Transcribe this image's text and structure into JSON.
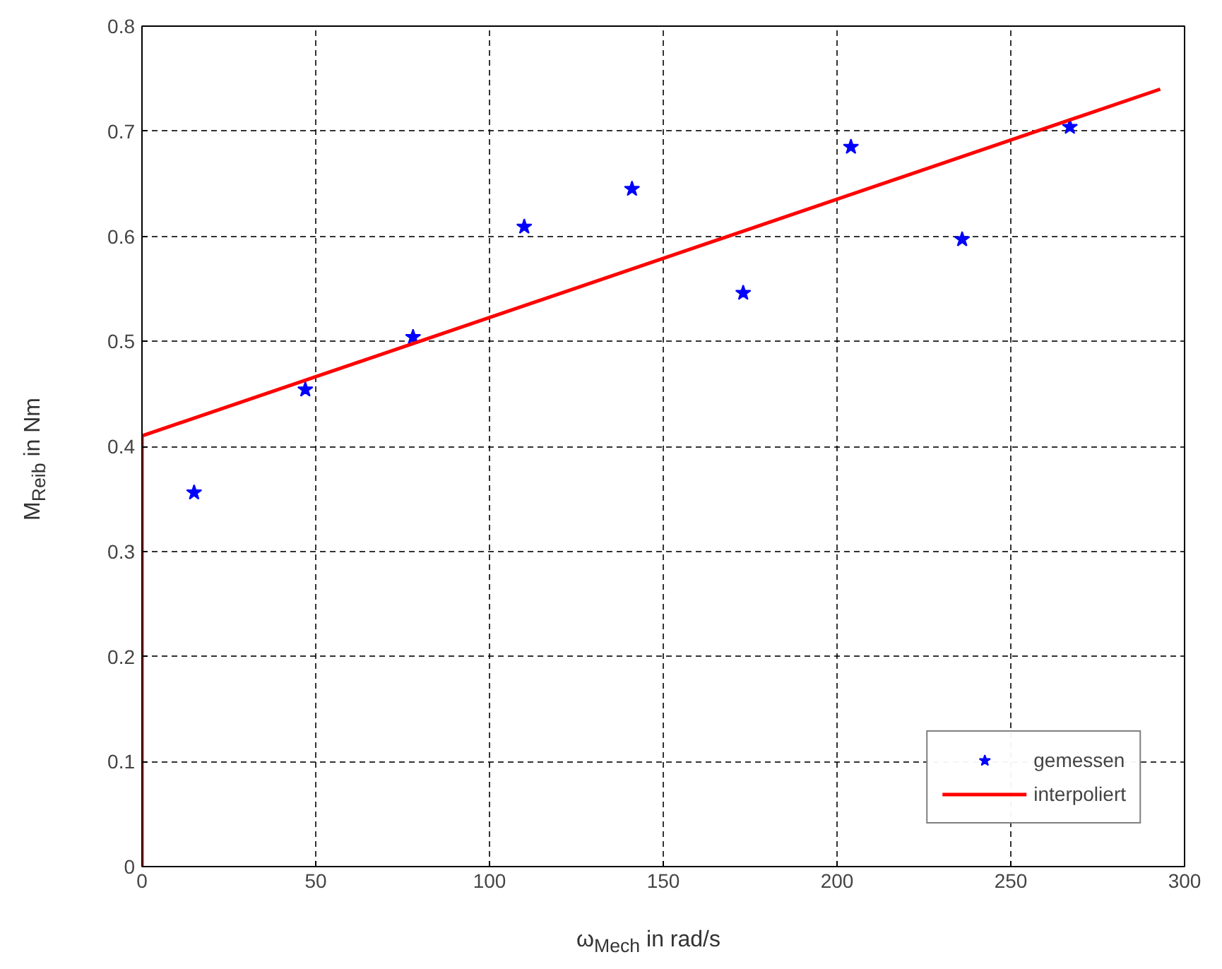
{
  "chart_data": {
    "type": "scatter",
    "xlabel": "ω$_{Mech}$ in rad/s",
    "ylabel": "M$_{Reib}$ in Nm",
    "series": [
      {
        "name": "gemessen",
        "color": "#0000ff",
        "marker": "star",
        "x": [
          15,
          47,
          78,
          110,
          141,
          173,
          204,
          236,
          267
        ],
        "values": [
          0.356,
          0.454,
          0.504,
          0.609,
          0.645,
          0.546,
          0.685,
          0.597,
          0.704
        ]
      },
      {
        "name": "interpoliert",
        "type": "line",
        "color": "#ff0000",
        "line_style": "solid",
        "marker": "none",
        "x": [
          0,
          0,
          293
        ],
        "values": [
          0,
          0.41,
          0.74
        ]
      }
    ],
    "xlim": [
      0,
      300
    ],
    "ylim": [
      0,
      0.8
    ],
    "xticks": [
      0,
      50,
      100,
      150,
      200,
      250,
      300
    ],
    "yticks": [
      0,
      0.1,
      0.2,
      0.3,
      0.4,
      0.5,
      0.6,
      0.7,
      0.8
    ],
    "grid": true,
    "legend": "bottom right"
  }
}
